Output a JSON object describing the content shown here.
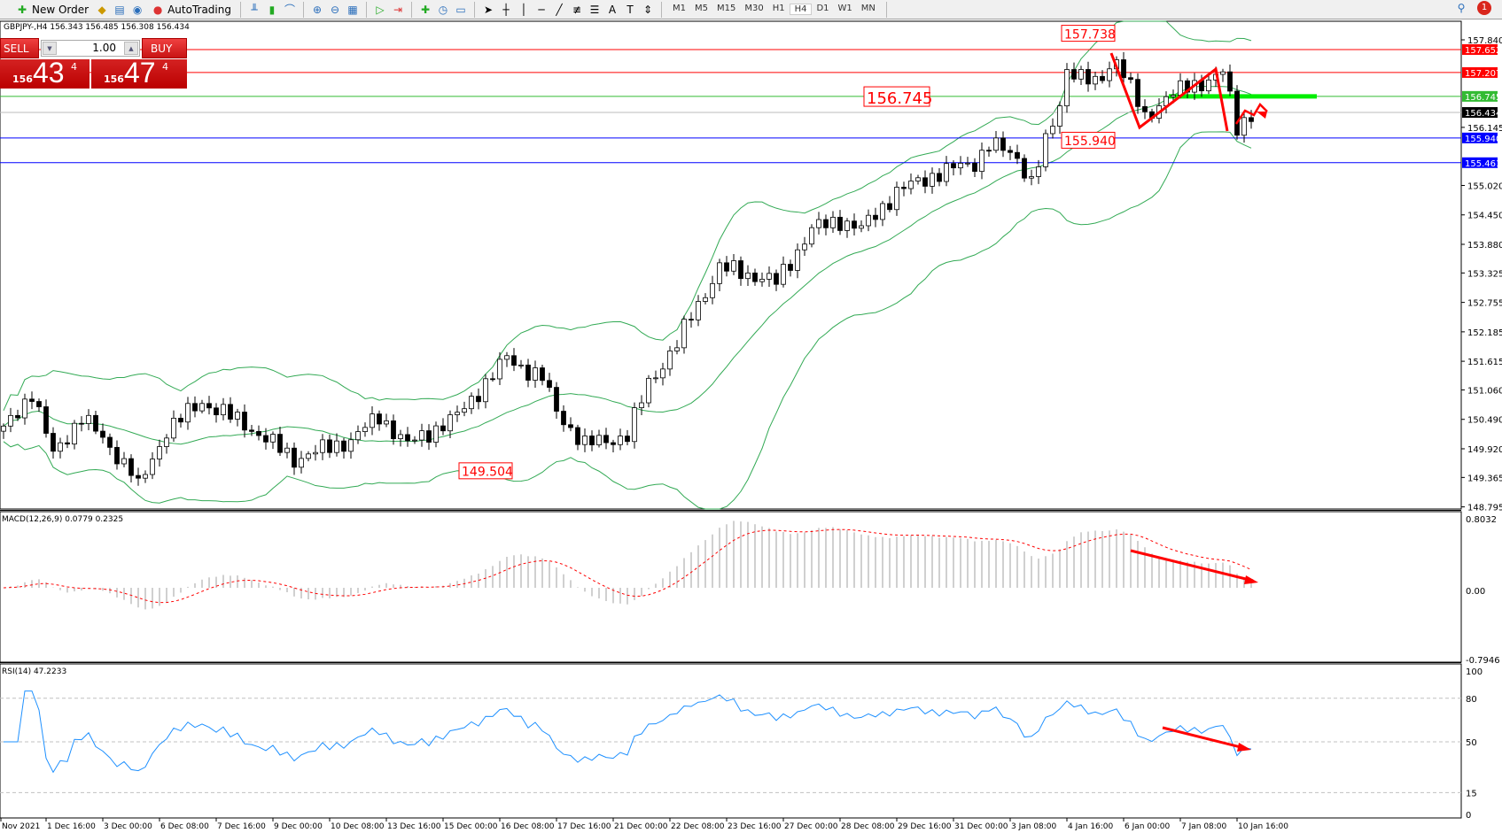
{
  "toolbar": {
    "new_order": "New Order",
    "autotrading": "AutoTrading",
    "timeframes": [
      "M1",
      "M5",
      "M15",
      "M30",
      "H1",
      "H4",
      "D1",
      "W1",
      "MN"
    ],
    "active_timeframe": "H4",
    "notification_count": "1"
  },
  "header": {
    "text": "GBPJPY-,H4  156.343 156.485 156.308 156.434"
  },
  "trade_panel": {
    "sell_label": "SELL",
    "buy_label": "BUY",
    "lot": "1.00",
    "sell_small": "156",
    "sell_big": "43",
    "sell_pip": "4",
    "buy_small": "156",
    "buy_big": "47",
    "buy_pip": "4"
  },
  "price_axis": {
    "ticks": [
      "157.840",
      "156.145",
      "155.020",
      "154.450",
      "153.880",
      "153.325",
      "152.755",
      "152.185",
      "151.615",
      "151.060",
      "150.490",
      "149.920",
      "149.365",
      "148.795"
    ]
  },
  "price_lines": [
    {
      "price": "157.652",
      "color": "#ff0000"
    },
    {
      "price": "157.207",
      "color": "#ff0000"
    },
    {
      "price": "156.745",
      "color": "#33bb33"
    },
    {
      "price": "156.434",
      "color": "#000000",
      "bid": true
    },
    {
      "price": "155.940",
      "color": "#0000ff"
    },
    {
      "price": "155.461",
      "color": "#0000ff"
    }
  ],
  "annotations": [
    {
      "text": "157.738",
      "bar": 153,
      "price": 157.84,
      "size": "small"
    },
    {
      "text": "156.745",
      "bar": 126,
      "price": 156.745,
      "size": "big"
    },
    {
      "text": "155.940",
      "bar": 153,
      "price": 155.94,
      "size": "small"
    },
    {
      "text": "149.504",
      "bar": 68,
      "price": 149.504,
      "size": "small"
    }
  ],
  "macd": {
    "label": "MACD(12,26,9) 0.0779 0.2325",
    "ticks": [
      "0.8032",
      "0.00",
      "-0.7946"
    ]
  },
  "rsi": {
    "label": "RSI(14) 47.2233",
    "ticks": [
      "100",
      "80",
      "50",
      "15",
      "0"
    ]
  },
  "time_axis": [
    "Nov 2021",
    "1 Dec 16:00",
    "3 Dec 00:00",
    "6 Dec 08:00",
    "7 Dec 16:00",
    "9 Dec 00:00",
    "10 Dec 08:00",
    "13 Dec 16:00",
    "15 Dec 00:00",
    "16 Dec 08:00",
    "17 Dec 16:00",
    "21 Dec 00:00",
    "22 Dec 08:00",
    "23 Dec 16:00",
    "27 Dec 00:00",
    "28 Dec 08:00",
    "29 Dec 16:00",
    "31 Dec 00:00",
    "3 Jan 08:00",
    "4 Jan 16:00",
    "6 Jan 00:00",
    "7 Jan 08:00",
    "10 Jan 16:00"
  ],
  "chart_data": {
    "type": "candlestick",
    "symbol": "GBPJPY-",
    "timeframe": "H4",
    "ylim": [
      148.795,
      157.84
    ],
    "close_keypoints": [
      [
        0,
        150.28
      ],
      [
        4,
        151.02
      ],
      [
        7,
        149.8
      ],
      [
        11,
        150.55
      ],
      [
        18,
        149.5
      ],
      [
        19,
        149.16
      ],
      [
        23,
        150.28
      ],
      [
        28,
        150.83
      ],
      [
        34,
        150.4
      ],
      [
        41,
        149.72
      ],
      [
        49,
        150.09
      ],
      [
        53,
        150.55
      ],
      [
        57,
        150.0
      ],
      [
        64,
        150.55
      ],
      [
        68,
        151.2
      ],
      [
        71,
        151.67
      ],
      [
        76,
        151.29
      ],
      [
        78,
        150.64
      ],
      [
        82,
        150.0
      ],
      [
        88,
        150.17
      ],
      [
        91,
        151.2
      ],
      [
        95,
        151.94
      ],
      [
        97,
        152.5
      ],
      [
        101,
        153.42
      ],
      [
        104,
        153.35
      ],
      [
        109,
        153.14
      ],
      [
        114,
        154.17
      ],
      [
        118,
        154.35
      ],
      [
        121,
        154.17
      ],
      [
        126,
        154.9
      ],
      [
        132,
        155.27
      ],
      [
        137,
        155.46
      ],
      [
        139,
        155.83
      ],
      [
        143,
        155.56
      ],
      [
        145,
        155.1
      ],
      [
        147,
        155.83
      ],
      [
        149,
        156.57
      ],
      [
        150,
        157.31
      ],
      [
        154,
        156.95
      ],
      [
        157,
        157.5
      ],
      [
        161,
        156.3
      ],
      [
        164,
        156.76
      ],
      [
        168,
        156.95
      ],
      [
        172,
        157.22
      ],
      [
        174,
        156.11
      ],
      [
        176,
        156.43
      ]
    ],
    "indicators": [
      "Bollinger Bands(20,2)",
      "MACD(12,26,9)",
      "RSI(14)"
    ],
    "colors": {
      "bands": "#33aa55",
      "macd_hist": "#c0c0c0",
      "macd_signal": "#ff0000",
      "rsi": "#1e90ff",
      "drawings": "#ff0000"
    }
  }
}
